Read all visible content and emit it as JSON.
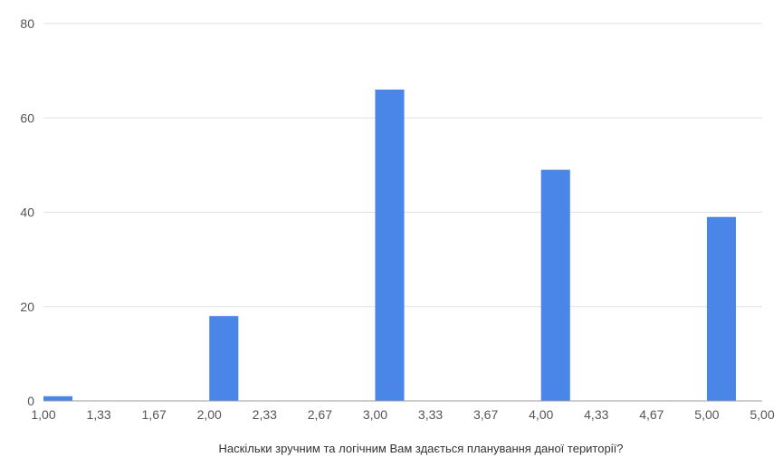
{
  "chart_data": {
    "type": "bar",
    "title": "",
    "xlabel": "Наскільки зручним та логічним Вам здається планування даної території?",
    "ylabel": "",
    "x_tick_labels": [
      "1,00",
      "1,33",
      "1,67",
      "2,00",
      "2,33",
      "2,67",
      "3,00",
      "3,33",
      "3,67",
      "4,00",
      "4,33",
      "4,67",
      "5,00",
      "5,00"
    ],
    "bins": [
      {
        "start": 1.0,
        "end": 1.33,
        "value": 1
      },
      {
        "start": 1.33,
        "end": 1.67,
        "value": 0
      },
      {
        "start": 1.67,
        "end": 2.0,
        "value": 0
      },
      {
        "start": 2.0,
        "end": 2.33,
        "value": 18
      },
      {
        "start": 2.33,
        "end": 2.67,
        "value": 0
      },
      {
        "start": 2.67,
        "end": 3.0,
        "value": 0
      },
      {
        "start": 3.0,
        "end": 3.33,
        "value": 66
      },
      {
        "start": 3.33,
        "end": 3.67,
        "value": 0
      },
      {
        "start": 3.67,
        "end": 4.0,
        "value": 0
      },
      {
        "start": 4.0,
        "end": 4.33,
        "value": 49
      },
      {
        "start": 4.33,
        "end": 4.67,
        "value": 0
      },
      {
        "start": 4.67,
        "end": 5.0,
        "value": 0
      },
      {
        "start": 5.0,
        "end": 5.33,
        "value": 39
      }
    ],
    "ylim": [
      0,
      80
    ],
    "y_ticks": [
      0,
      20,
      40,
      60,
      80
    ],
    "grid": true,
    "bar_color": "#4a86e8",
    "grid_color": "#e0e0e0",
    "legend": "none"
  }
}
